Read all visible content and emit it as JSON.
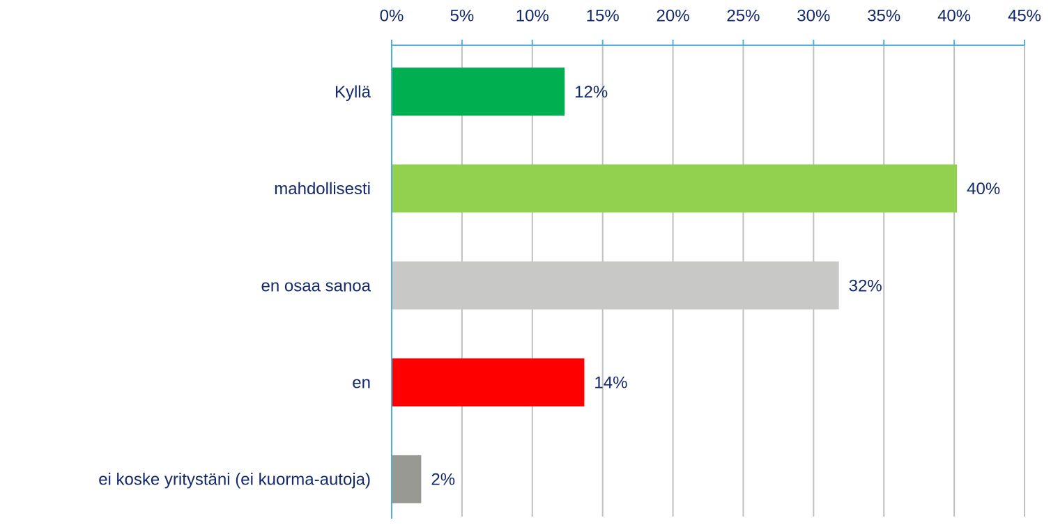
{
  "chart_data": {
    "type": "hbar",
    "categories": [
      "Kyllä",
      "mahdollisesti",
      "en osaa sanoa",
      "en",
      "ei koske yritystäni (ei kuorma-autoja)"
    ],
    "values": [
      12.3,
      40.2,
      31.8,
      13.7,
      2.1
    ],
    "value_labels": [
      "12%",
      "40%",
      "32%",
      "14%",
      "2%"
    ],
    "colors": [
      "#00b050",
      "#92d050",
      "#c8c8c6",
      "#ff0000",
      "#999994"
    ],
    "xlim": [
      0,
      45
    ],
    "xticks": [
      {
        "value": 0,
        "label": "0%"
      },
      {
        "value": 5,
        "label": "5%"
      },
      {
        "value": 10,
        "label": "10%"
      },
      {
        "value": 15,
        "label": "15%"
      },
      {
        "value": 20,
        "label": "20%"
      },
      {
        "value": 25,
        "label": "25%"
      },
      {
        "value": 30,
        "label": "30%"
      },
      {
        "value": 35,
        "label": "35%"
      },
      {
        "value": 40,
        "label": "40%"
      },
      {
        "value": 45,
        "label": "45%"
      }
    ],
    "grid": true
  }
}
